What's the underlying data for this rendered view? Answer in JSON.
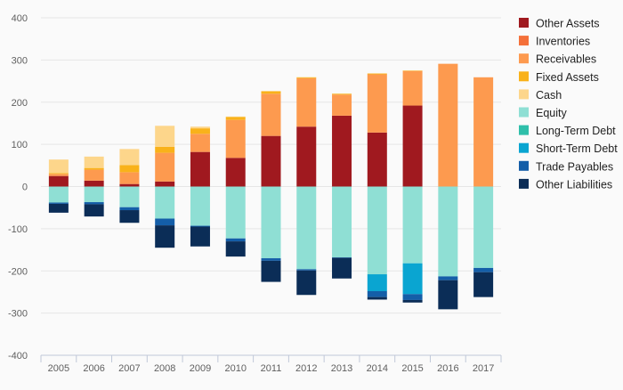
{
  "chart_data": {
    "type": "bar",
    "stacked": true,
    "title": "",
    "xlabel": "",
    "ylabel": "",
    "ylim": [
      -400,
      400
    ],
    "yticks": [
      -400,
      -300,
      -200,
      -100,
      0,
      100,
      200,
      300,
      400
    ],
    "grid": true,
    "legend_position": "right",
    "categories": [
      "2005",
      "2006",
      "2007",
      "2008",
      "2009",
      "2010",
      "2011",
      "2012",
      "2013",
      "2014",
      "2015",
      "2016",
      "2017"
    ],
    "series": [
      {
        "name": "Other Assets",
        "color": "#a0191f",
        "values": [
          25,
          14,
          6,
          12,
          82,
          68,
          120,
          142,
          168,
          128,
          192,
          0,
          0
        ]
      },
      {
        "name": "Inventories",
        "color": "#f4703a",
        "values": [
          0,
          0,
          0,
          0,
          0,
          0,
          0,
          0,
          0,
          0,
          0,
          0,
          0
        ]
      },
      {
        "name": "Receivables",
        "color": "#fd9a4f",
        "values": [
          5,
          26,
          28,
          68,
          43,
          90,
          100,
          115,
          50,
          138,
          82,
          291,
          259
        ]
      },
      {
        "name": "Fixed Assets",
        "color": "#f9b21a",
        "values": [
          2,
          4,
          17,
          14,
          13,
          7,
          6,
          2,
          2,
          2,
          1,
          0,
          0
        ]
      },
      {
        "name": "Cash",
        "color": "#fdd68b",
        "values": [
          32,
          27,
          38,
          50,
          4,
          1,
          0,
          0,
          0,
          0,
          0,
          0,
          0
        ]
      },
      {
        "name": "Equity",
        "color": "#8fdfd4",
        "values": [
          -38,
          -37,
          -49,
          -76,
          -93,
          -123,
          -170,
          -196,
          -168,
          -208,
          -182,
          -213,
          -193
        ]
      },
      {
        "name": "Long-Term Debt",
        "color": "#2fbfaa",
        "values": [
          0,
          0,
          0,
          0,
          0,
          0,
          0,
          0,
          0,
          0,
          0,
          0,
          0
        ]
      },
      {
        "name": "Short-Term Debt",
        "color": "#0aa5d1",
        "values": [
          0,
          0,
          0,
          0,
          0,
          0,
          0,
          0,
          0,
          -40,
          -73,
          0,
          0
        ]
      },
      {
        "name": "Trade Payables",
        "color": "#145ea8",
        "values": [
          -3,
          -5,
          -7,
          -16,
          -2,
          -7,
          -6,
          -3,
          -1,
          -14,
          -14,
          -9,
          -10
        ]
      },
      {
        "name": "Other Liabilities",
        "color": "#0b2d57",
        "values": [
          -21,
          -29,
          -30,
          -53,
          -47,
          -36,
          -50,
          -58,
          -49,
          -6,
          -6,
          -69,
          -59
        ]
      }
    ]
  }
}
